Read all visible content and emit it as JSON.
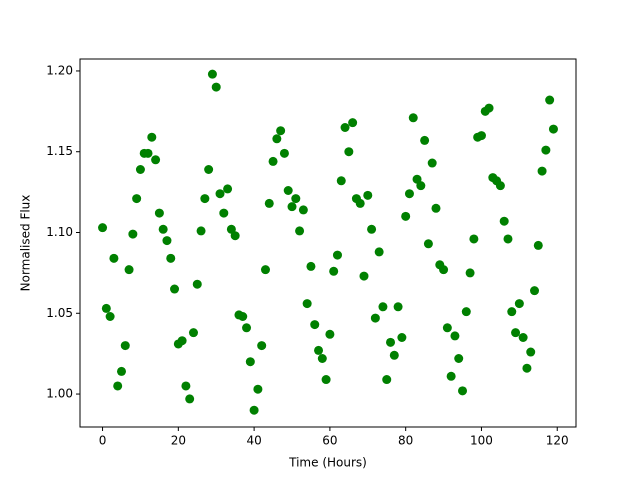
{
  "chart_data": {
    "type": "scatter",
    "xlabel": "Time (Hours)",
    "ylabel": "Normalised Flux",
    "color": "#008000",
    "x": [
      0,
      1,
      2,
      3,
      4,
      5,
      6,
      7,
      8,
      9,
      10,
      11,
      12,
      13,
      14,
      15,
      16,
      17,
      18,
      19,
      20,
      21,
      22,
      23,
      24,
      25,
      26,
      27,
      28,
      29,
      30,
      31,
      32,
      33,
      34,
      35,
      36,
      37,
      38,
      39,
      40,
      41,
      42,
      43,
      44,
      45,
      46,
      47,
      48,
      49,
      50,
      51,
      52,
      53,
      54,
      55,
      56,
      57,
      58,
      59,
      60,
      61,
      62,
      63,
      64,
      65,
      66,
      67,
      68,
      69,
      70,
      71,
      72,
      73,
      74,
      75,
      76,
      77,
      78,
      79,
      80,
      81,
      82,
      83,
      84,
      85,
      86,
      87,
      88,
      89,
      90,
      91,
      92,
      93,
      94,
      95,
      96,
      97,
      98,
      99,
      100,
      101,
      102,
      103,
      104,
      105,
      106,
      107,
      108,
      109,
      110,
      111,
      112,
      113,
      114,
      115,
      116,
      117,
      118,
      119
    ],
    "values": [
      1.103,
      1.053,
      1.048,
      1.084,
      1.005,
      1.014,
      1.03,
      1.077,
      1.099,
      1.121,
      1.139,
      1.149,
      1.149,
      1.159,
      1.145,
      1.112,
      1.102,
      1.095,
      1.084,
      1.065,
      1.031,
      1.033,
      1.005,
      0.997,
      1.038,
      1.068,
      1.101,
      1.121,
      1.139,
      1.198,
      1.19,
      1.124,
      1.112,
      1.127,
      1.102,
      1.098,
      1.049,
      1.048,
      1.041,
      1.02,
      0.99,
      1.003,
      1.03,
      1.077,
      1.118,
      1.144,
      1.158,
      1.163,
      1.149,
      1.126,
      1.116,
      1.121,
      1.101,
      1.114,
      1.056,
      1.079,
      1.043,
      1.027,
      1.022,
      1.009,
      1.037,
      1.076,
      1.086,
      1.132,
      1.165,
      1.15,
      1.168,
      1.121,
      1.118,
      1.073,
      1.123,
      1.102,
      1.047,
      1.088,
      1.054,
      1.009,
      1.032,
      1.024,
      1.054,
      1.035,
      1.11,
      1.124,
      1.171,
      1.133,
      1.129,
      1.157,
      1.093,
      1.143,
      1.115,
      1.08,
      1.077,
      1.041,
      1.011,
      1.036,
      1.022,
      1.002,
      1.051,
      1.075,
      1.096,
      1.159,
      1.16,
      1.175,
      1.177,
      1.134,
      1.132,
      1.129,
      1.107,
      1.096,
      1.051,
      1.038,
      1.056,
      1.035,
      1.016,
      1.026,
      1.064,
      1.092,
      1.138,
      1.151,
      1.182,
      1.164
    ],
    "xlim": [
      -5.95,
      124.95
    ],
    "xticks": [
      0,
      20,
      40,
      60,
      80,
      100,
      120
    ],
    "ylim": [
      0.9796,
      1.2074
    ],
    "yticks": [
      {
        "value": 1.0,
        "label": "1.00"
      },
      {
        "value": 1.05,
        "label": "1.05"
      },
      {
        "value": 1.1,
        "label": "1.10"
      },
      {
        "value": 1.15,
        "label": "1.15"
      },
      {
        "value": 1.2,
        "label": "1.20"
      }
    ]
  }
}
